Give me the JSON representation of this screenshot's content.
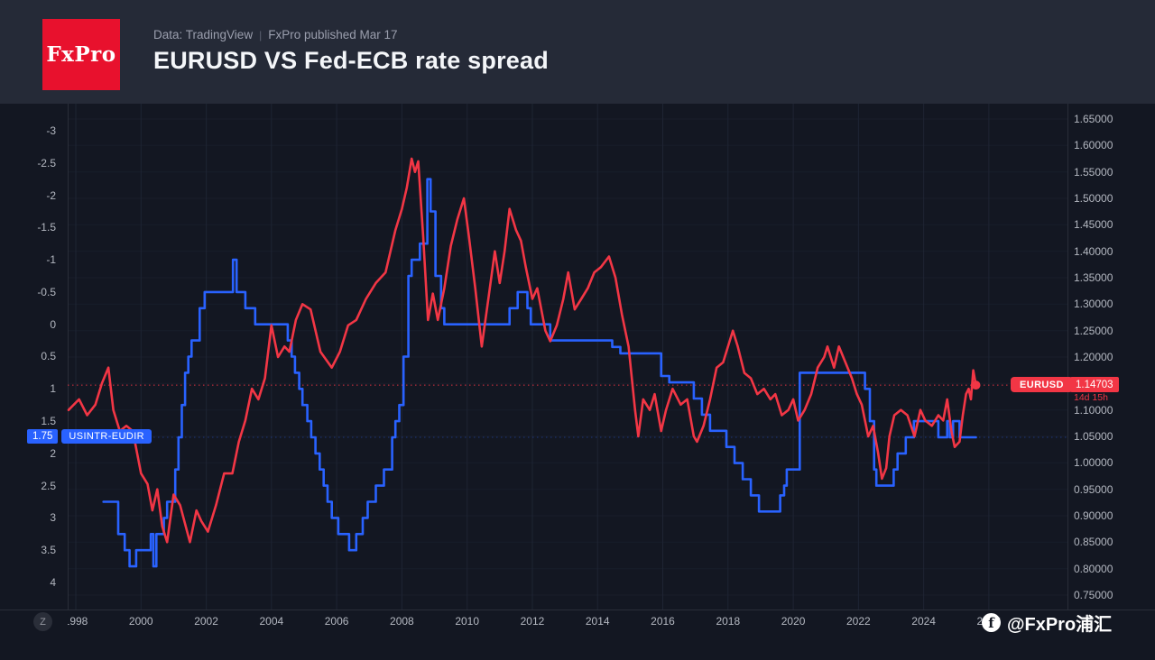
{
  "header": {
    "logo_text": "FxPro",
    "subtitle_left": "Data: TradingView",
    "subtitle_sep": "|",
    "subtitle_right": "FxPro published Mar 17",
    "title": "EURUSD VS Fed-ECB rate spread"
  },
  "colors": {
    "header_bg": "#252a37",
    "chart_bg": "#131722",
    "logo_red": "#e8112d",
    "red_line": "#f23645",
    "blue_line": "#2962ff",
    "axis_text": "#b4b8c1",
    "grid": "#1e2433",
    "border": "#2a2e39"
  },
  "price_labels": {
    "eurusd_badge": "EURUSD",
    "eurusd_value": "1.14703",
    "countdown": "14d 15h",
    "spread_value": "1.75",
    "spread_badge": "USINTR-EUDIR"
  },
  "footer": {
    "timezone_button": "Z",
    "watermark_icon_letter": "f",
    "watermark": "@FxPro浦汇"
  },
  "chart_data": {
    "type": "line",
    "title": "EURUSD VS Fed-ECB rate spread",
    "x_axis": {
      "ticks": [
        1998,
        2000,
        2002,
        2004,
        2006,
        2008,
        2010,
        2012,
        2014,
        2016,
        2018,
        2020,
        2022,
        2024,
        2026
      ]
    },
    "left_axis": {
      "inverted": true,
      "ticks": [
        -3,
        -2.5,
        -2,
        -1.5,
        -1,
        -0.5,
        0,
        0.5,
        1,
        1.5,
        2,
        2.5,
        3,
        3.5,
        4
      ]
    },
    "right_axis": {
      "ticks": [
        1.65,
        1.6,
        1.55,
        1.5,
        1.45,
        1.4,
        1.35,
        1.3,
        1.25,
        1.2,
        1.15,
        1.1,
        1.05,
        1.0,
        0.95,
        0.9,
        0.85,
        0.8,
        0.75
      ]
    },
    "series": [
      {
        "name": "EURUSD",
        "color": "#f23645",
        "axis": "right",
        "style": "line",
        "last_value": "1.14703",
        "points": [
          [
            1997.78,
            1.1
          ],
          [
            1998.1,
            1.12
          ],
          [
            1998.35,
            1.09
          ],
          [
            1998.6,
            1.11
          ],
          [
            1998.8,
            1.15
          ],
          [
            1999.0,
            1.18
          ],
          [
            1999.15,
            1.1
          ],
          [
            1999.35,
            1.06
          ],
          [
            1999.55,
            1.07
          ],
          [
            1999.75,
            1.06
          ],
          [
            2000.0,
            0.98
          ],
          [
            2000.2,
            0.96
          ],
          [
            2000.35,
            0.91
          ],
          [
            2000.5,
            0.95
          ],
          [
            2000.65,
            0.88
          ],
          [
            2000.8,
            0.85
          ],
          [
            2001.0,
            0.94
          ],
          [
            2001.2,
            0.92
          ],
          [
            2001.5,
            0.85
          ],
          [
            2001.7,
            0.91
          ],
          [
            2001.85,
            0.89
          ],
          [
            2002.05,
            0.87
          ],
          [
            2002.3,
            0.92
          ],
          [
            2002.55,
            0.98
          ],
          [
            2002.8,
            0.98
          ],
          [
            2003.0,
            1.04
          ],
          [
            2003.2,
            1.08
          ],
          [
            2003.4,
            1.14
          ],
          [
            2003.6,
            1.12
          ],
          [
            2003.8,
            1.16
          ],
          [
            2004.0,
            1.26
          ],
          [
            2004.2,
            1.2
          ],
          [
            2004.4,
            1.22
          ],
          [
            2004.55,
            1.21
          ],
          [
            2004.75,
            1.27
          ],
          [
            2004.95,
            1.3
          ],
          [
            2005.2,
            1.29
          ],
          [
            2005.5,
            1.21
          ],
          [
            2005.85,
            1.18
          ],
          [
            2006.1,
            1.21
          ],
          [
            2006.35,
            1.26
          ],
          [
            2006.6,
            1.27
          ],
          [
            2006.9,
            1.31
          ],
          [
            2007.2,
            1.34
          ],
          [
            2007.5,
            1.36
          ],
          [
            2007.8,
            1.44
          ],
          [
            2008.0,
            1.48
          ],
          [
            2008.15,
            1.52
          ],
          [
            2008.3,
            1.575
          ],
          [
            2008.4,
            1.55
          ],
          [
            2008.5,
            1.57
          ],
          [
            2008.65,
            1.43
          ],
          [
            2008.8,
            1.27
          ],
          [
            2008.95,
            1.32
          ],
          [
            2009.1,
            1.27
          ],
          [
            2009.3,
            1.33
          ],
          [
            2009.5,
            1.41
          ],
          [
            2009.7,
            1.46
          ],
          [
            2009.9,
            1.5
          ],
          [
            2010.05,
            1.43
          ],
          [
            2010.25,
            1.33
          ],
          [
            2010.45,
            1.22
          ],
          [
            2010.65,
            1.31
          ],
          [
            2010.85,
            1.4
          ],
          [
            2011.0,
            1.34
          ],
          [
            2011.15,
            1.4
          ],
          [
            2011.3,
            1.48
          ],
          [
            2011.5,
            1.44
          ],
          [
            2011.65,
            1.42
          ],
          [
            2011.8,
            1.37
          ],
          [
            2012.0,
            1.31
          ],
          [
            2012.15,
            1.33
          ],
          [
            2012.4,
            1.25
          ],
          [
            2012.55,
            1.23
          ],
          [
            2012.75,
            1.26
          ],
          [
            2012.95,
            1.31
          ],
          [
            2013.1,
            1.36
          ],
          [
            2013.3,
            1.29
          ],
          [
            2013.5,
            1.31
          ],
          [
            2013.7,
            1.33
          ],
          [
            2013.9,
            1.36
          ],
          [
            2014.1,
            1.37
          ],
          [
            2014.35,
            1.39
          ],
          [
            2014.55,
            1.35
          ],
          [
            2014.75,
            1.28
          ],
          [
            2014.95,
            1.22
          ],
          [
            2015.15,
            1.1
          ],
          [
            2015.25,
            1.05
          ],
          [
            2015.4,
            1.12
          ],
          [
            2015.6,
            1.1
          ],
          [
            2015.75,
            1.13
          ],
          [
            2015.95,
            1.06
          ],
          [
            2016.1,
            1.1
          ],
          [
            2016.3,
            1.14
          ],
          [
            2016.55,
            1.11
          ],
          [
            2016.75,
            1.12
          ],
          [
            2016.95,
            1.05
          ],
          [
            2017.05,
            1.04
          ],
          [
            2017.25,
            1.07
          ],
          [
            2017.45,
            1.12
          ],
          [
            2017.65,
            1.18
          ],
          [
            2017.85,
            1.19
          ],
          [
            2018.05,
            1.23
          ],
          [
            2018.15,
            1.25
          ],
          [
            2018.3,
            1.22
          ],
          [
            2018.5,
            1.17
          ],
          [
            2018.7,
            1.16
          ],
          [
            2018.9,
            1.13
          ],
          [
            2019.1,
            1.14
          ],
          [
            2019.3,
            1.12
          ],
          [
            2019.45,
            1.13
          ],
          [
            2019.65,
            1.09
          ],
          [
            2019.85,
            1.1
          ],
          [
            2020.0,
            1.12
          ],
          [
            2020.15,
            1.08
          ],
          [
            2020.35,
            1.1
          ],
          [
            2020.55,
            1.13
          ],
          [
            2020.75,
            1.18
          ],
          [
            2020.95,
            1.2
          ],
          [
            2021.05,
            1.22
          ],
          [
            2021.25,
            1.18
          ],
          [
            2021.4,
            1.22
          ],
          [
            2021.6,
            1.19
          ],
          [
            2021.8,
            1.16
          ],
          [
            2021.95,
            1.13
          ],
          [
            2022.1,
            1.11
          ],
          [
            2022.3,
            1.05
          ],
          [
            2022.45,
            1.07
          ],
          [
            2022.6,
            1.02
          ],
          [
            2022.72,
            0.97
          ],
          [
            2022.85,
            0.99
          ],
          [
            2022.95,
            1.05
          ],
          [
            2023.1,
            1.09
          ],
          [
            2023.3,
            1.1
          ],
          [
            2023.5,
            1.09
          ],
          [
            2023.72,
            1.05
          ],
          [
            2023.9,
            1.1
          ],
          [
            2024.05,
            1.08
          ],
          [
            2024.25,
            1.07
          ],
          [
            2024.45,
            1.09
          ],
          [
            2024.6,
            1.08
          ],
          [
            2024.72,
            1.12
          ],
          [
            2024.85,
            1.06
          ],
          [
            2024.95,
            1.03
          ],
          [
            2025.1,
            1.04
          ],
          [
            2025.2,
            1.09
          ],
          [
            2025.3,
            1.13
          ],
          [
            2025.38,
            1.14
          ],
          [
            2025.45,
            1.12
          ],
          [
            2025.52,
            1.175
          ],
          [
            2025.6,
            1.14703
          ]
        ]
      },
      {
        "name": "USINTR-EUDIR",
        "color": "#2962ff",
        "axis": "left",
        "style": "step",
        "last_value": "1.75",
        "points": [
          [
            1998.85,
            2.75
          ],
          [
            1999.3,
            3.25
          ],
          [
            1999.5,
            3.5
          ],
          [
            1999.65,
            3.75
          ],
          [
            1999.85,
            3.5
          ],
          [
            2000.3,
            3.25
          ],
          [
            2000.38,
            3.75
          ],
          [
            2000.47,
            3.25
          ],
          [
            2000.7,
            3.0
          ],
          [
            2000.8,
            2.75
          ],
          [
            2001.05,
            2.25
          ],
          [
            2001.15,
            1.75
          ],
          [
            2001.25,
            1.25
          ],
          [
            2001.35,
            0.75
          ],
          [
            2001.45,
            0.5
          ],
          [
            2001.55,
            0.25
          ],
          [
            2001.8,
            -0.25
          ],
          [
            2001.95,
            -0.5
          ],
          [
            2002.82,
            -1.0
          ],
          [
            2002.93,
            -0.5
          ],
          [
            2003.2,
            -0.25
          ],
          [
            2003.5,
            0.0
          ],
          [
            2004.5,
            0.25
          ],
          [
            2004.62,
            0.5
          ],
          [
            2004.72,
            0.75
          ],
          [
            2004.85,
            1.0
          ],
          [
            2004.95,
            1.25
          ],
          [
            2005.1,
            1.5
          ],
          [
            2005.22,
            1.75
          ],
          [
            2005.35,
            2.0
          ],
          [
            2005.48,
            2.25
          ],
          [
            2005.6,
            2.5
          ],
          [
            2005.72,
            2.75
          ],
          [
            2005.85,
            3.0
          ],
          [
            2006.05,
            3.25
          ],
          [
            2006.38,
            3.5
          ],
          [
            2006.6,
            3.25
          ],
          [
            2006.8,
            3.0
          ],
          [
            2006.95,
            2.75
          ],
          [
            2007.2,
            2.5
          ],
          [
            2007.45,
            2.25
          ],
          [
            2007.7,
            1.75
          ],
          [
            2007.8,
            1.5
          ],
          [
            2007.92,
            1.25
          ],
          [
            2008.05,
            0.5
          ],
          [
            2008.2,
            -0.75
          ],
          [
            2008.3,
            -1.0
          ],
          [
            2008.55,
            -1.25
          ],
          [
            2008.78,
            -2.25
          ],
          [
            2008.88,
            -1.75
          ],
          [
            2009.03,
            -0.75
          ],
          [
            2009.2,
            -0.25
          ],
          [
            2009.3,
            0.0
          ],
          [
            2011.3,
            -0.25
          ],
          [
            2011.55,
            -0.5
          ],
          [
            2011.85,
            -0.25
          ],
          [
            2011.95,
            0.0
          ],
          [
            2012.55,
            0.25
          ],
          [
            2014.45,
            0.35
          ],
          [
            2014.7,
            0.45
          ],
          [
            2015.95,
            0.8
          ],
          [
            2016.2,
            0.9
          ],
          [
            2016.95,
            1.15
          ],
          [
            2017.2,
            1.4
          ],
          [
            2017.45,
            1.65
          ],
          [
            2017.95,
            1.9
          ],
          [
            2018.2,
            2.15
          ],
          [
            2018.45,
            2.4
          ],
          [
            2018.7,
            2.65
          ],
          [
            2018.95,
            2.9
          ],
          [
            2019.6,
            2.65
          ],
          [
            2019.72,
            2.5
          ],
          [
            2019.8,
            2.25
          ],
          [
            2020.2,
            0.75
          ],
          [
            2022.2,
            1.0
          ],
          [
            2022.35,
            1.5
          ],
          [
            2022.48,
            2.25
          ],
          [
            2022.55,
            2.5
          ],
          [
            2023.08,
            2.25
          ],
          [
            2023.2,
            2.0
          ],
          [
            2023.45,
            1.75
          ],
          [
            2023.7,
            1.5
          ],
          [
            2024.45,
            1.75
          ],
          [
            2024.72,
            1.5
          ],
          [
            2024.8,
            1.75
          ],
          [
            2024.9,
            1.5
          ],
          [
            2025.1,
            1.75
          ],
          [
            2025.6,
            1.75
          ]
        ]
      }
    ]
  }
}
